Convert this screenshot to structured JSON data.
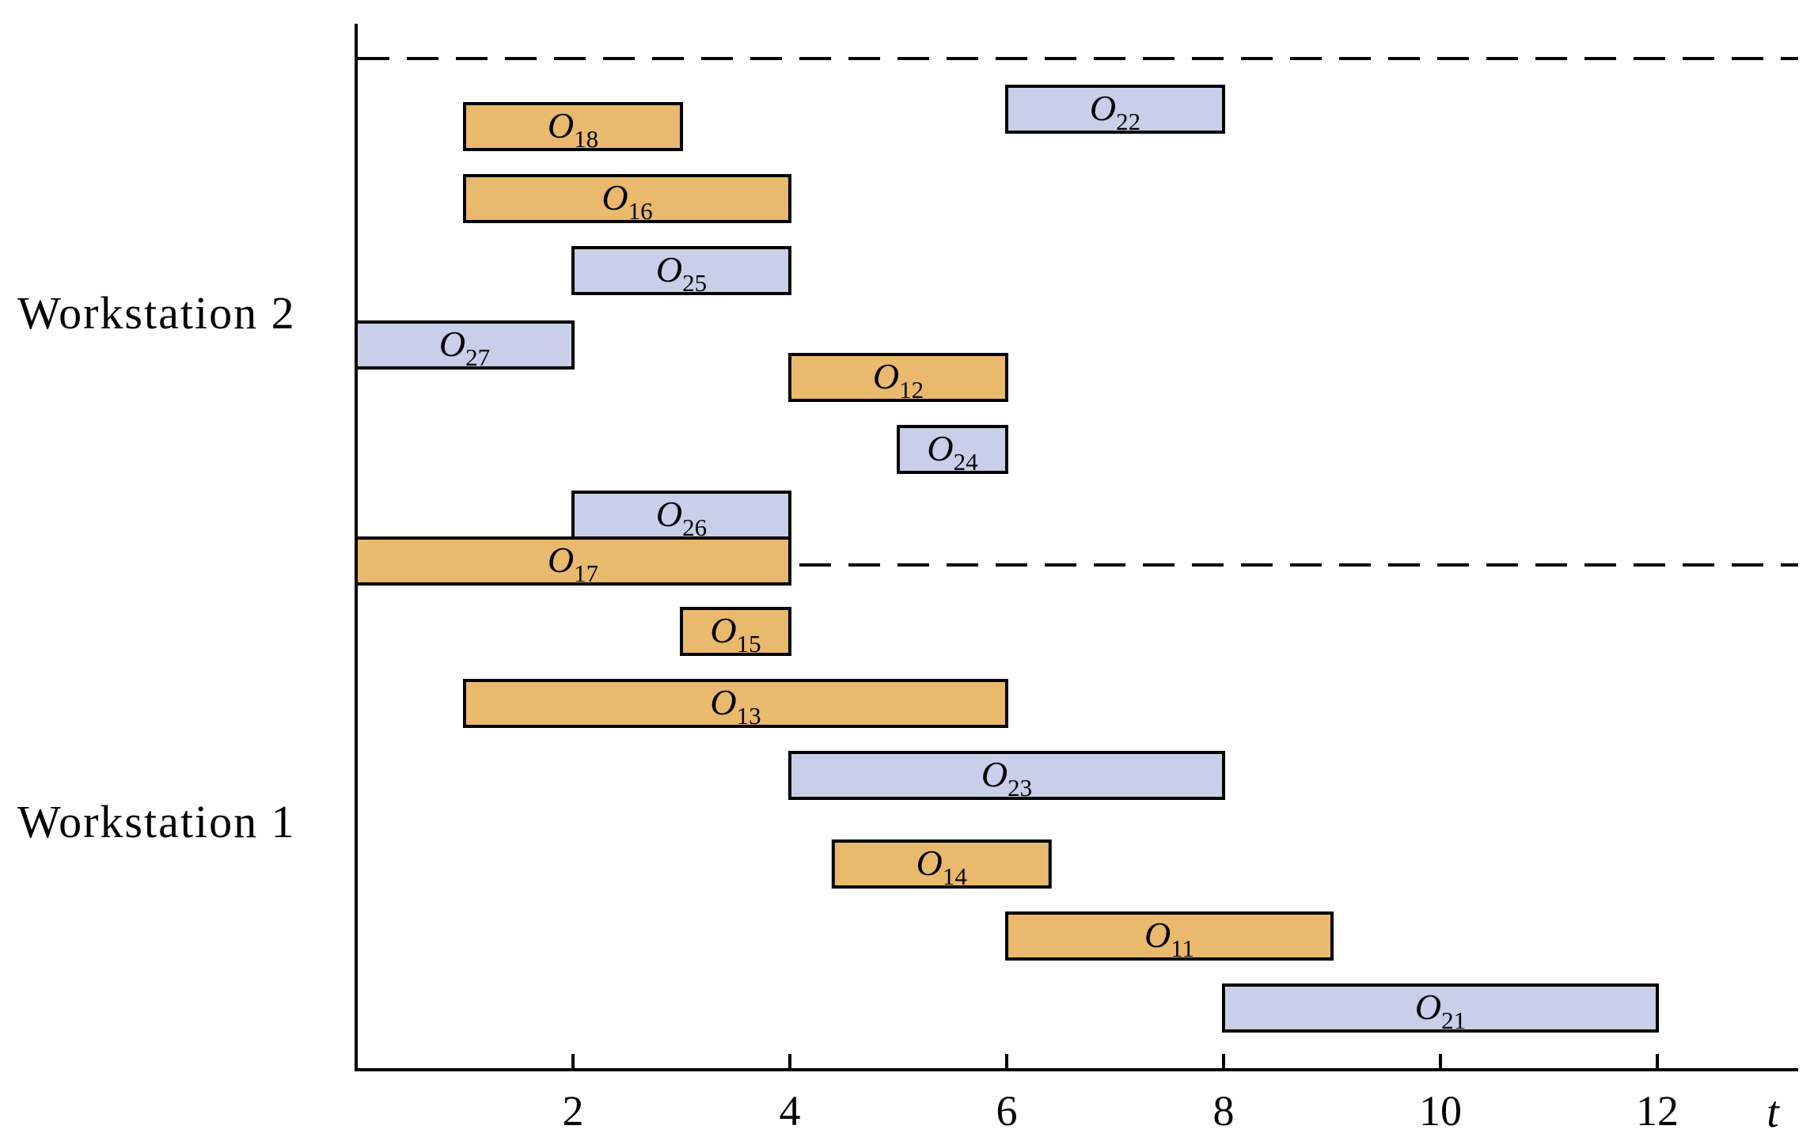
{
  "chart_data": {
    "type": "gantt",
    "xlabel": "t",
    "xlim": [
      0,
      13.3
    ],
    "xticks": [
      2,
      4,
      6,
      8,
      10,
      12
    ],
    "grid": false,
    "colors": {
      "job1": "#e9b96e",
      "job2": "#c9cfe9",
      "outline": "#000000",
      "separator": "#000000"
    },
    "groups": [
      {
        "name": "Workstation 2",
        "bars": [
          {
            "op": "O",
            "sub": "22",
            "job": 2,
            "start": 6,
            "end": 8
          },
          {
            "op": "O",
            "sub": "18",
            "job": 1,
            "start": 1,
            "end": 3
          },
          {
            "op": "O",
            "sub": "16",
            "job": 1,
            "start": 1,
            "end": 4
          },
          {
            "op": "O",
            "sub": "25",
            "job": 2,
            "start": 2,
            "end": 4
          },
          {
            "op": "O",
            "sub": "12",
            "job": 1,
            "start": 4,
            "end": 6
          },
          {
            "op": "O",
            "sub": "27",
            "job": 2,
            "start": 0,
            "end": 2
          },
          {
            "op": "O",
            "sub": "24",
            "job": 2,
            "start": 5,
            "end": 6
          },
          {
            "op": "O",
            "sub": "26",
            "job": 2,
            "start": 2,
            "end": 4
          },
          {
            "op": "O",
            "sub": "17",
            "job": 1,
            "start": 0,
            "end": 4
          }
        ]
      },
      {
        "name": "Workstation 1",
        "bars": [
          {
            "op": "O",
            "sub": "15",
            "job": 1,
            "start": 3,
            "end": 4
          },
          {
            "op": "O",
            "sub": "13",
            "job": 1,
            "start": 1,
            "end": 6
          },
          {
            "op": "O",
            "sub": "23",
            "job": 2,
            "start": 4,
            "end": 8
          },
          {
            "op": "O",
            "sub": "14",
            "job": 1,
            "start": 4.4,
            "end": 6.4
          },
          {
            "op": "O",
            "sub": "11",
            "job": 1,
            "start": 6,
            "end": 9
          },
          {
            "op": "O",
            "sub": "21",
            "job": 2,
            "start": 8,
            "end": 12
          }
        ]
      }
    ]
  }
}
